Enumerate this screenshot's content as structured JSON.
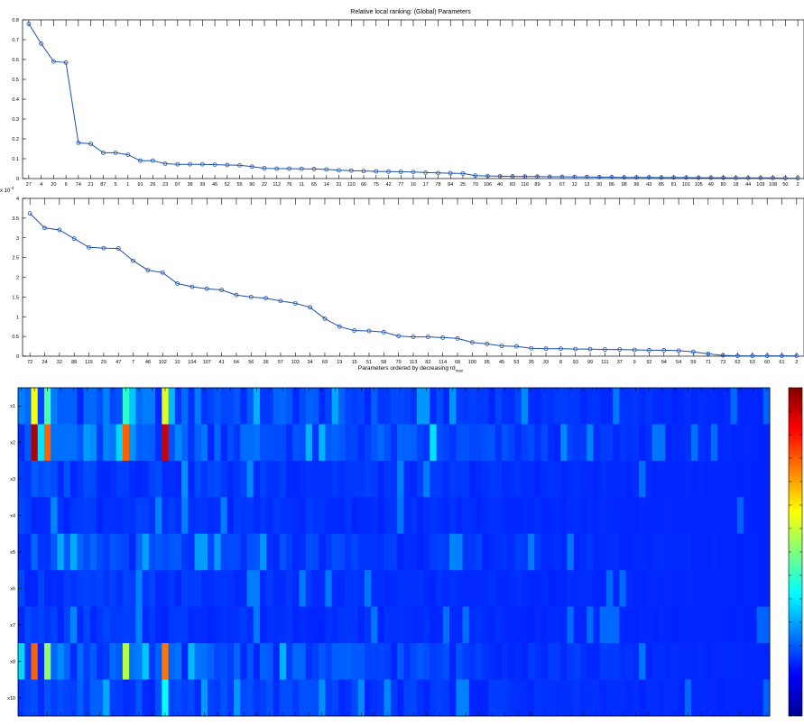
{
  "chart_data": [
    {
      "type": "line",
      "title": "Relative local ranking: (Global) Parameters",
      "xlabel": "",
      "ylabel": "",
      "ylim": [
        0,
        0.8
      ],
      "yticks": [
        "0",
        "0.1",
        "0.2",
        "0.3",
        "0.4",
        "0.5",
        "0.6",
        "0.7",
        "0.8"
      ],
      "categories": [
        "27",
        "4",
        "20",
        "6",
        "74",
        "21",
        "87",
        "5",
        "1",
        "91",
        "26",
        "23",
        "97",
        "38",
        "39",
        "46",
        "52",
        "55",
        "90",
        "22",
        "112",
        "76",
        "11",
        "65",
        "14",
        "31",
        "110",
        "66",
        "75",
        "42",
        "77",
        "16",
        "17",
        "78",
        "84",
        "25",
        "70",
        "106",
        "40",
        "83",
        "116",
        "89",
        "3",
        "67",
        "12",
        "13",
        "30",
        "86",
        "98",
        "96",
        "43",
        "85",
        "81",
        "101",
        "105",
        "49",
        "80",
        "18",
        "44",
        "109",
        "108",
        "50",
        "2"
      ],
      "values": [
        0.78,
        0.68,
        0.59,
        0.585,
        0.18,
        0.175,
        0.13,
        0.13,
        0.12,
        0.09,
        0.09,
        0.075,
        0.072,
        0.072,
        0.072,
        0.07,
        0.068,
        0.067,
        0.06,
        0.052,
        0.05,
        0.05,
        0.049,
        0.048,
        0.046,
        0.042,
        0.04,
        0.038,
        0.036,
        0.035,
        0.034,
        0.033,
        0.03,
        0.028,
        0.027,
        0.026,
        0.015,
        0.013,
        0.012,
        0.011,
        0.01,
        0.01,
        0.009,
        0.009,
        0.008,
        0.008,
        0.007,
        0.007,
        0.006,
        0.006,
        0.006,
        0.005,
        0.005,
        0.005,
        0.004,
        0.004,
        0.004,
        0.003,
        0.003,
        0.003,
        0.003,
        0.002,
        0.002
      ]
    },
    {
      "type": "line",
      "title": "",
      "xlabel": "Parameters ordered by decreasing rd",
      "xlabel_sub": "max",
      "ylabel": "",
      "scale_label": "x 10",
      "scale_exp": "-4",
      "ylim": [
        0,
        4
      ],
      "yticks": [
        "0",
        "0.5",
        "1",
        "1.5",
        "2",
        "2.5",
        "3",
        "3.5",
        "4"
      ],
      "categories": [
        "72",
        "24",
        "32",
        "88",
        "115",
        "29",
        "47",
        "7",
        "48",
        "102",
        "10",
        "104",
        "107",
        "41",
        "64",
        "56",
        "36",
        "57",
        "103",
        "34",
        "69",
        "19",
        "15",
        "51",
        "58",
        "79",
        "113",
        "82",
        "114",
        "68",
        "100",
        "95",
        "45",
        "53",
        "35",
        "33",
        "8",
        "93",
        "99",
        "111",
        "37",
        "9",
        "92",
        "94",
        "54",
        "59",
        "71",
        "73",
        "62",
        "63",
        "60",
        "61",
        "2"
      ],
      "values": [
        3.62,
        3.25,
        3.2,
        2.98,
        2.76,
        2.74,
        2.73,
        2.42,
        2.18,
        2.12,
        1.84,
        1.76,
        1.71,
        1.68,
        1.55,
        1.5,
        1.47,
        1.4,
        1.34,
        1.24,
        0.95,
        0.75,
        0.65,
        0.64,
        0.61,
        0.51,
        0.49,
        0.49,
        0.47,
        0.45,
        0.35,
        0.31,
        0.26,
        0.25,
        0.2,
        0.19,
        0.19,
        0.18,
        0.18,
        0.17,
        0.17,
        0.16,
        0.15,
        0.15,
        0.14,
        0.11,
        0.06,
        0.02,
        0.01,
        0.01,
        0.01,
        0.01,
        0.01
      ]
    },
    {
      "type": "heatmap",
      "title": "",
      "rows": [
        "x1",
        "x2",
        "x3",
        "x4",
        "x5",
        "x6",
        "x7",
        "x8",
        "x10"
      ],
      "n_columns": 115,
      "colorscale": "jet",
      "hot_cells": [
        {
          "row": "x1",
          "col": 2,
          "v": 0.62
        },
        {
          "row": "x1",
          "col": 4,
          "v": 0.45
        },
        {
          "row": "x1",
          "col": 16,
          "v": 0.42
        },
        {
          "row": "x1",
          "col": 22,
          "v": 0.6
        },
        {
          "row": "x2",
          "col": 2,
          "v": 0.95
        },
        {
          "row": "x2",
          "col": 4,
          "v": 0.78
        },
        {
          "row": "x2",
          "col": 16,
          "v": 0.78
        },
        {
          "row": "x2",
          "col": 22,
          "v": 0.92
        },
        {
          "row": "x8",
          "col": 2,
          "v": 0.78
        },
        {
          "row": "x8",
          "col": 4,
          "v": 0.52
        },
        {
          "row": "x8",
          "col": 16,
          "v": 0.55
        },
        {
          "row": "x8",
          "col": 22,
          "v": 0.76
        },
        {
          "row": "x10",
          "col": 22,
          "v": 0.38
        },
        {
          "row": "x2",
          "col": 63,
          "v": 0.35
        }
      ]
    }
  ]
}
